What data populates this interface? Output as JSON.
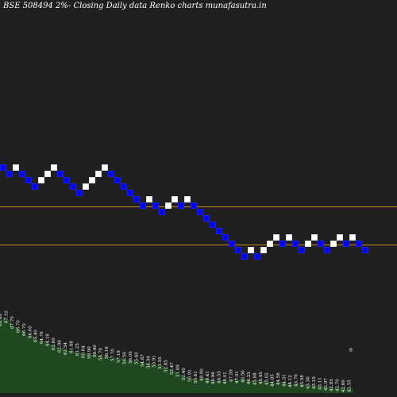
{
  "page": {
    "title": "BSE 508494  2%-  Closing Daily data  Renko  charts munafasutra.in",
    "background": "#1f1f1f"
  },
  "colors": {
    "up_brick": "#ffffff",
    "down_brick": "#0000ff",
    "brick_border": "#1a1aff",
    "level_line": "#c98a1a",
    "volume_fill": "#1f4720",
    "volume_top": "#284f28",
    "label_text": "#ffffff"
  },
  "chart_data": {
    "type": "renko",
    "brick_size_pct": 2,
    "bricks": [
      {
        "dir": "down",
        "level": 0
      },
      {
        "dir": "down",
        "level": -1
      },
      {
        "dir": "up",
        "level": 0
      },
      {
        "dir": "down",
        "level": -1
      },
      {
        "dir": "down",
        "level": -2
      },
      {
        "dir": "down",
        "level": -3
      },
      {
        "dir": "up",
        "level": -2
      },
      {
        "dir": "up",
        "level": -1
      },
      {
        "dir": "up",
        "level": 0
      },
      {
        "dir": "down",
        "level": -1
      },
      {
        "dir": "down",
        "level": -2
      },
      {
        "dir": "down",
        "level": -3
      },
      {
        "dir": "down",
        "level": -4
      },
      {
        "dir": "up",
        "level": -3
      },
      {
        "dir": "up",
        "level": -2
      },
      {
        "dir": "up",
        "level": -1
      },
      {
        "dir": "up",
        "level": 0
      },
      {
        "dir": "down",
        "level": -1
      },
      {
        "dir": "down",
        "level": -2
      },
      {
        "dir": "down",
        "level": -3
      },
      {
        "dir": "down",
        "level": -4
      },
      {
        "dir": "down",
        "level": -5
      },
      {
        "dir": "down",
        "level": -6
      },
      {
        "dir": "up",
        "level": -5
      },
      {
        "dir": "down",
        "level": -6
      },
      {
        "dir": "down",
        "level": -7
      },
      {
        "dir": "up",
        "level": -6
      },
      {
        "dir": "up",
        "level": -5
      },
      {
        "dir": "down",
        "level": -6
      },
      {
        "dir": "up",
        "level": -5
      },
      {
        "dir": "down",
        "level": -6
      },
      {
        "dir": "down",
        "level": -7
      },
      {
        "dir": "down",
        "level": -8
      },
      {
        "dir": "down",
        "level": -9
      },
      {
        "dir": "down",
        "level": -10
      },
      {
        "dir": "down",
        "level": -11
      },
      {
        "dir": "down",
        "level": -12
      },
      {
        "dir": "down",
        "level": -13
      },
      {
        "dir": "down",
        "level": -14
      },
      {
        "dir": "up",
        "level": -13
      },
      {
        "dir": "down",
        "level": -14
      },
      {
        "dir": "up",
        "level": -13
      },
      {
        "dir": "up",
        "level": -12
      },
      {
        "dir": "up",
        "level": -11
      },
      {
        "dir": "down",
        "level": -12
      },
      {
        "dir": "up",
        "level": -11
      },
      {
        "dir": "down",
        "level": -12
      },
      {
        "dir": "down",
        "level": -13
      },
      {
        "dir": "up",
        "level": -12
      },
      {
        "dir": "up",
        "level": -11
      },
      {
        "dir": "down",
        "level": -12
      },
      {
        "dir": "down",
        "level": -13
      },
      {
        "dir": "up",
        "level": -12
      },
      {
        "dir": "up",
        "level": -11
      },
      {
        "dir": "down",
        "level": -12
      },
      {
        "dir": "up",
        "level": -11
      },
      {
        "dir": "down",
        "level": -12
      },
      {
        "dir": "down",
        "level": -13
      }
    ],
    "levels": [
      -6.6,
      -12.6
    ],
    "price_labels": [
      "68.49",
      "67.10",
      "67.70",
      "66.70",
      "66.70",
      "66.00",
      "65.40",
      "64.76",
      "64.18",
      "63.60",
      "62.98",
      "62.34",
      "61.88",
      "61.25",
      "60.64",
      "59.90",
      "59.40",
      "58.79",
      "58.16",
      "57.70",
      "57.19",
      "56.59",
      "56.05",
      "55.40",
      "54.87",
      "54.34",
      "53.91",
      "53.55",
      "52.85",
      "52.47",
      "51.89",
      "51.40",
      "50.91",
      "50.41",
      "49.90",
      "49.41",
      "48.96",
      "48.53",
      "48.01",
      "47.59",
      "47.01",
      "46.56",
      "46.23",
      "45.88",
      "45.45",
      "45.02",
      "44.85",
      "44.58",
      "44.31",
      "44.12",
      "43.76",
      "43.58",
      "43.36",
      "43.19",
      "43.11",
      "42.97",
      "42.85",
      "42.70",
      "42.60",
      "42.55"
    ],
    "end_label": "6",
    "volume_heights": [
      88,
      95,
      92,
      85,
      82,
      80,
      76,
      70,
      73,
      68,
      64,
      66,
      63,
      60,
      58,
      55,
      57,
      52,
      54,
      50,
      51,
      48,
      50,
      47,
      49,
      46,
      45,
      47,
      43,
      44,
      42,
      44,
      40,
      41,
      39,
      40,
      37,
      38,
      35,
      36,
      33,
      34,
      30,
      29,
      27,
      24,
      22,
      20,
      18,
      17,
      16,
      19,
      17,
      16,
      15,
      14,
      16,
      15,
      14,
      18,
      16,
      17,
      16,
      15,
      14,
      16,
      15,
      14,
      13,
      12,
      14,
      13,
      12,
      11,
      10,
      12,
      11,
      10,
      9,
      9,
      8,
      8,
      7,
      7,
      6,
      6,
      6,
      5,
      5,
      4
    ]
  }
}
